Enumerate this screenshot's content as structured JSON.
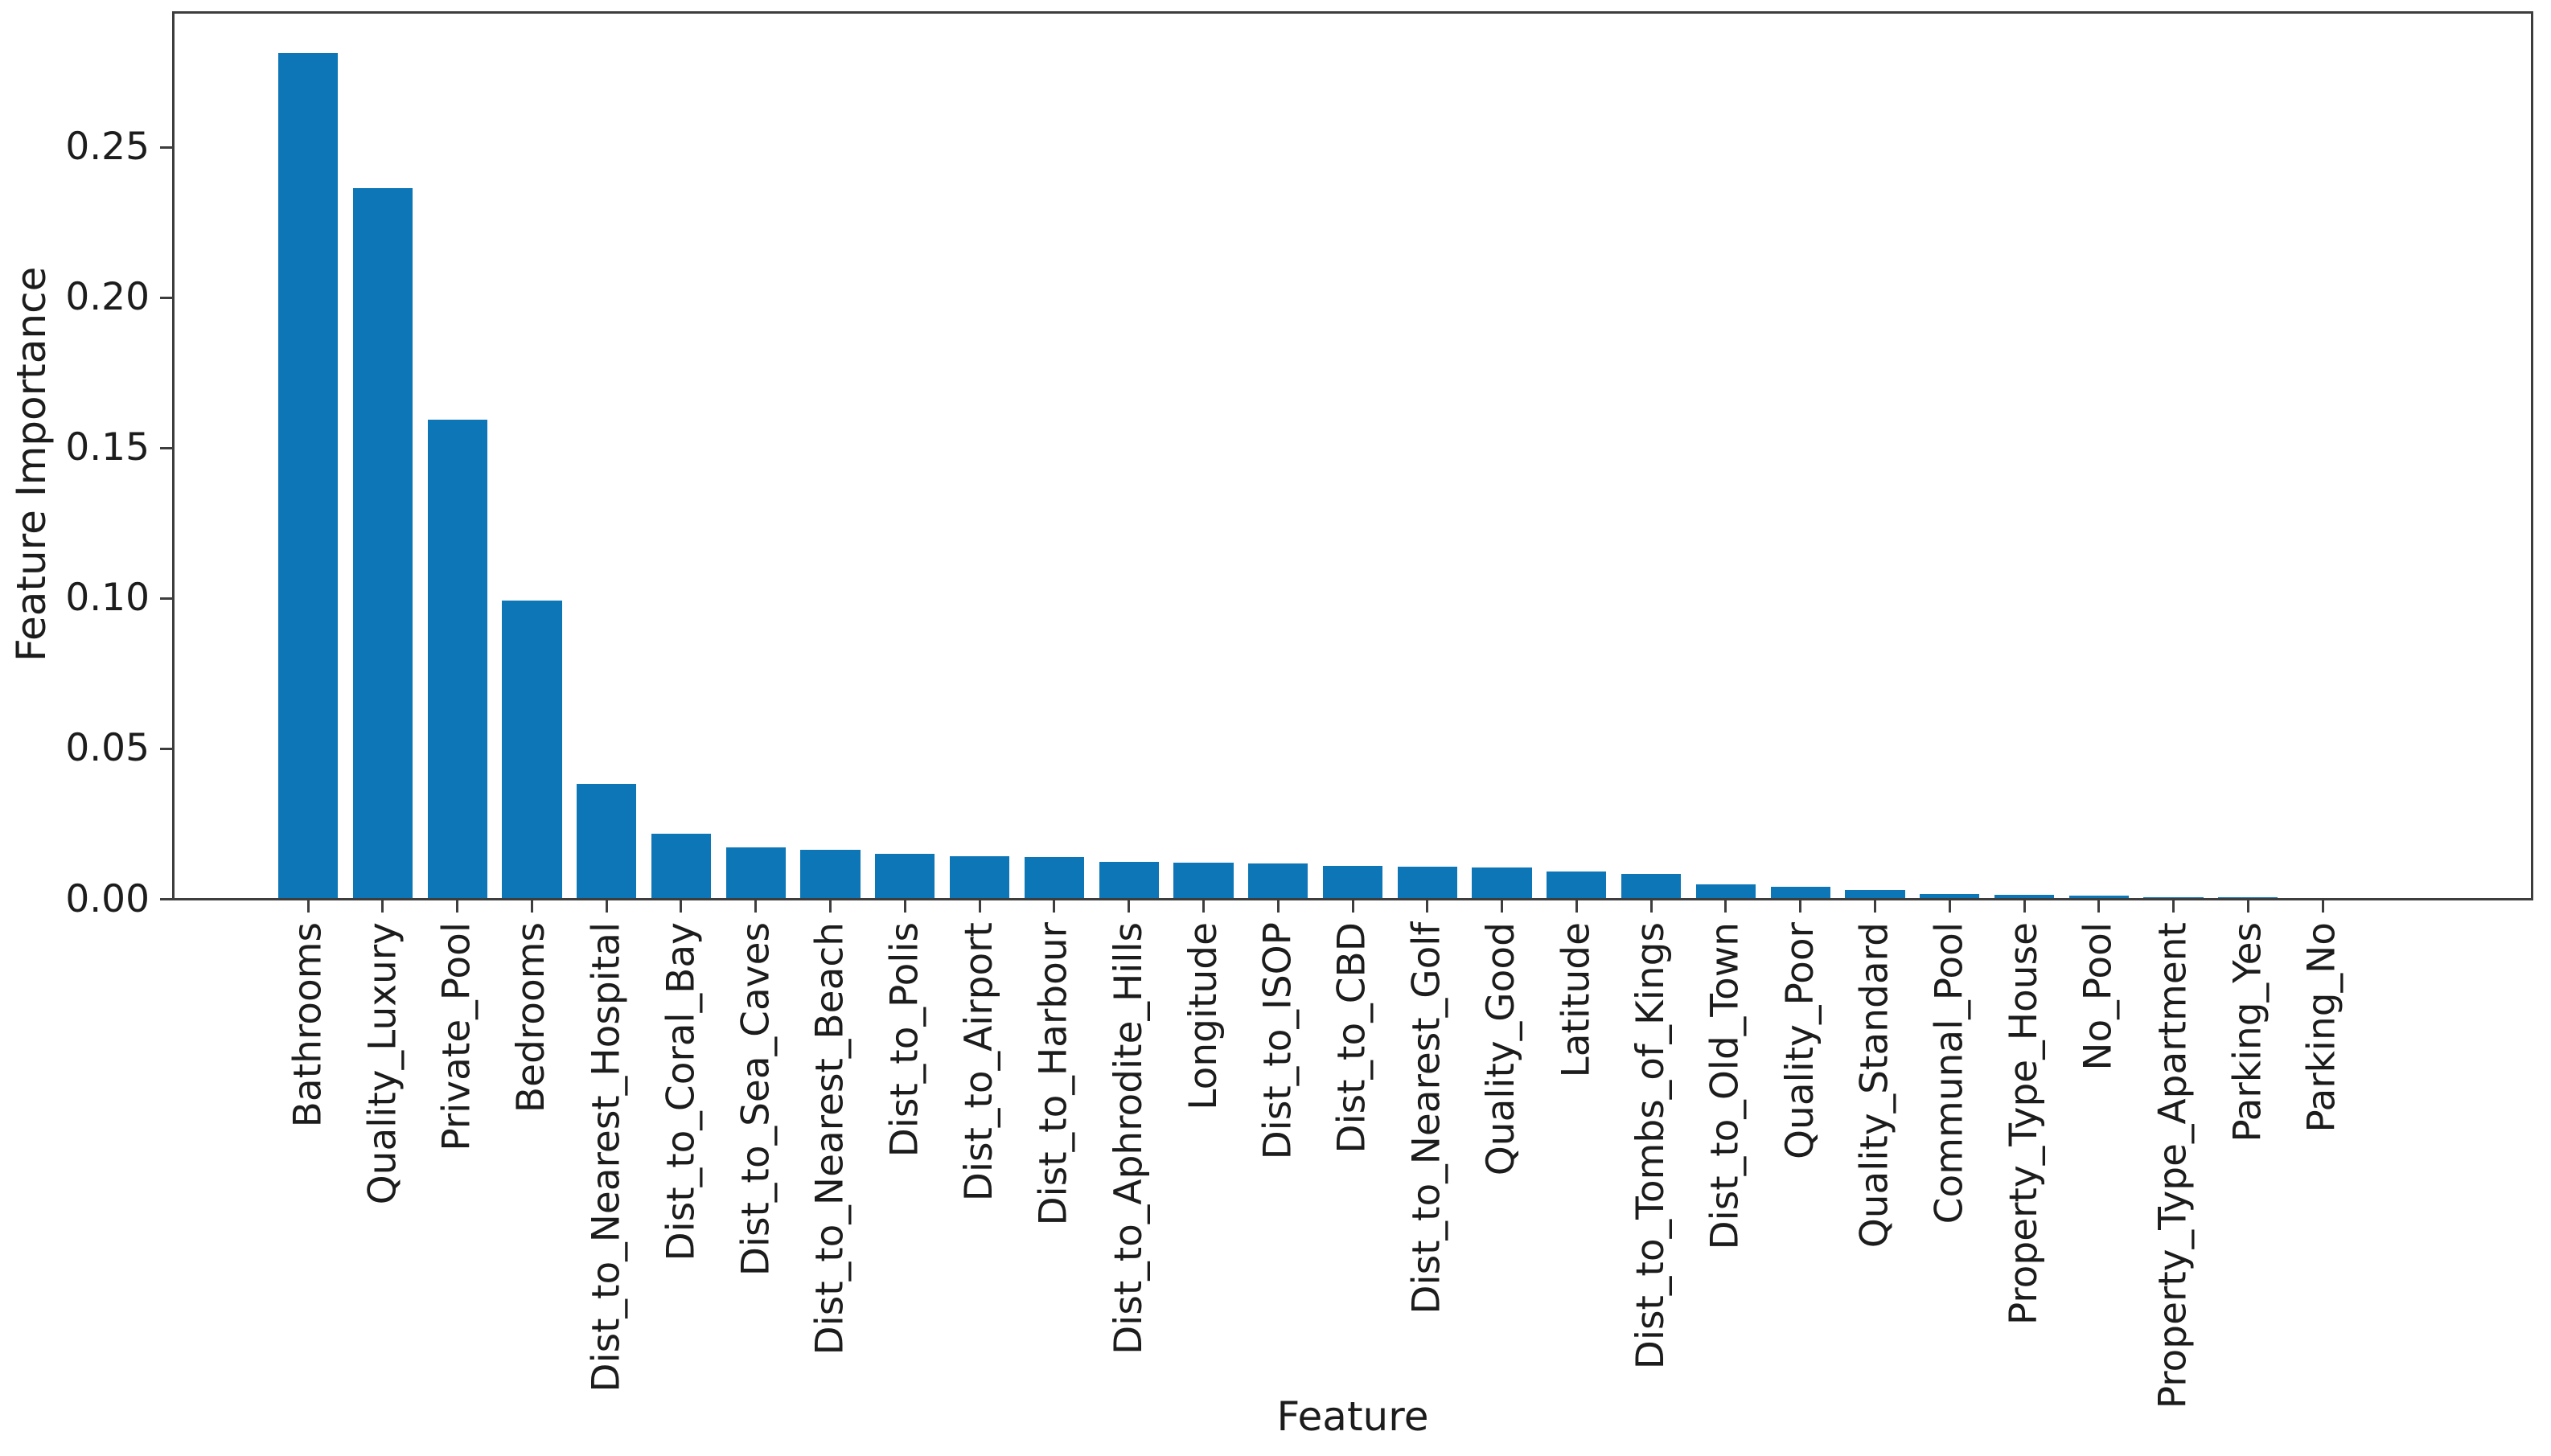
{
  "colors": {
    "bar_fill": "#0d76b7",
    "axis_spine": "#3d3d3d",
    "text": "#1c1c1c",
    "background": "#ffffff"
  },
  "chart_data": {
    "type": "bar",
    "title": "",
    "xlabel": "Feature",
    "ylabel": "Feature Importance",
    "ylim": [
      0,
      0.2941
    ],
    "grid": false,
    "legend": "none",
    "y_ticks": [
      "0.00",
      "0.05",
      "0.10",
      "0.15",
      "0.20",
      "0.25"
    ],
    "y_tick_values": [
      0.0,
      0.05,
      0.1,
      0.15,
      0.2,
      0.25
    ],
    "categories": [
      "Bathrooms",
      "Quality_Luxury",
      "Private_Pool",
      "Bedrooms",
      "Dist_to_Nearest_Hospital",
      "Dist_to_Coral_Bay",
      "Dist_to_Sea_Caves",
      "Dist_to_Nearest_Beach",
      "Dist_to_Polis",
      "Dist_to_Airport",
      "Dist_to_Harbour",
      "Dist_to_Aphrodite_Hills",
      "Longitude",
      "Dist_to_ISOP",
      "Dist_to_CBD",
      "Dist_to_Nearest_Golf",
      "Quality_Good",
      "Latitude",
      "Dist_to_Tombs_of_Kings",
      "Dist_to_Old_Town",
      "Quality_Poor",
      "Quality_Standard",
      "Communal_Pool",
      "Property_Type_House",
      "No_Pool",
      "Property_Type_Apartment",
      "Parking_Yes",
      "Parking_No"
    ],
    "values": [
      0.281,
      0.236,
      0.159,
      0.099,
      0.038,
      0.0214,
      0.0168,
      0.016,
      0.0146,
      0.0139,
      0.0137,
      0.012,
      0.0119,
      0.0116,
      0.0106,
      0.0104,
      0.0102,
      0.0088,
      0.0079,
      0.0046,
      0.0037,
      0.0028,
      0.0013,
      0.001,
      0.0008,
      0.0003,
      0.0002,
      0.0001
    ]
  }
}
